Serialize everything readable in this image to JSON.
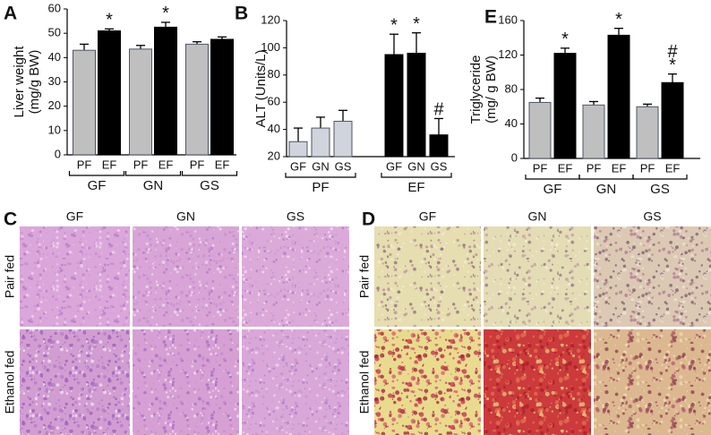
{
  "chart_data": [
    {
      "type": "bar",
      "panel": "A",
      "y_label": [
        "Liver weight",
        "(mg/g BW)"
      ],
      "categories": [
        "PF",
        "EF",
        "PF",
        "EF",
        "PF",
        "EF"
      ],
      "groups": [
        "GF",
        "GN",
        "GS"
      ],
      "values": [
        43,
        51,
        43.5,
        52.5,
        45.5,
        47.5
      ],
      "errors": [
        2.5,
        0.8,
        1.5,
        2,
        1,
        1
      ],
      "colors": [
        "#bfbfbf",
        "#000000",
        "#bfbfbf",
        "#000000",
        "#bfbfbf",
        "#000000"
      ],
      "annotations": [
        null,
        [
          "*"
        ],
        null,
        [
          "*"
        ],
        null,
        null
      ],
      "ylim": [
        0,
        60
      ],
      "yticks": [
        0,
        10,
        20,
        30,
        40,
        50,
        60
      ]
    },
    {
      "type": "bar",
      "panel": "B",
      "y_label": [
        "ALT (Units/L)"
      ],
      "categories": [
        "GF",
        "GN",
        "GS",
        "GF",
        "GN",
        "GS"
      ],
      "groups": [
        "PF",
        "EF"
      ],
      "values": [
        31,
        41,
        46,
        95,
        96,
        36
      ],
      "errors": [
        10,
        8,
        8,
        15,
        15,
        12
      ],
      "colors": [
        "#d0d4dc",
        "#d0d4dc",
        "#d0d4dc",
        "#000000",
        "#000000",
        "#000000"
      ],
      "annotations": [
        null,
        null,
        null,
        [
          "*"
        ],
        [
          "*"
        ],
        [
          "#"
        ]
      ],
      "ylim": [
        20,
        120
      ],
      "yticks": [
        20,
        40,
        60,
        80,
        100,
        120
      ]
    },
    {
      "type": "bar",
      "panel": "E",
      "y_label": [
        "Triglyceride",
        "(mg/ g BW)"
      ],
      "categories": [
        "PF",
        "EF",
        "PF",
        "EF",
        "PF",
        "EF"
      ],
      "groups": [
        "GF",
        "GN",
        "GS"
      ],
      "values": [
        65,
        122,
        62,
        143,
        60,
        88
      ],
      "errors": [
        5,
        6,
        4,
        8,
        3,
        10
      ],
      "colors": [
        "#bfbfbf",
        "#000000",
        "#bfbfbf",
        "#000000",
        "#bfbfbf",
        "#000000"
      ],
      "annotations": [
        null,
        [
          "*"
        ],
        null,
        [
          "*"
        ],
        null,
        [
          "#",
          "*"
        ]
      ],
      "ylim": [
        0,
        160
      ],
      "yticks": [
        0,
        40,
        80,
        120,
        160
      ]
    }
  ],
  "image_panels": [
    {
      "label": "C",
      "columns": [
        "GF",
        "GN",
        "GS"
      ],
      "rows": [
        "Pair fed",
        "Ethanol fed"
      ]
    },
    {
      "label": "D",
      "columns": [
        "GF",
        "GN",
        "GS"
      ],
      "rows": [
        "Pair fed",
        "Ethanol fed"
      ]
    }
  ]
}
